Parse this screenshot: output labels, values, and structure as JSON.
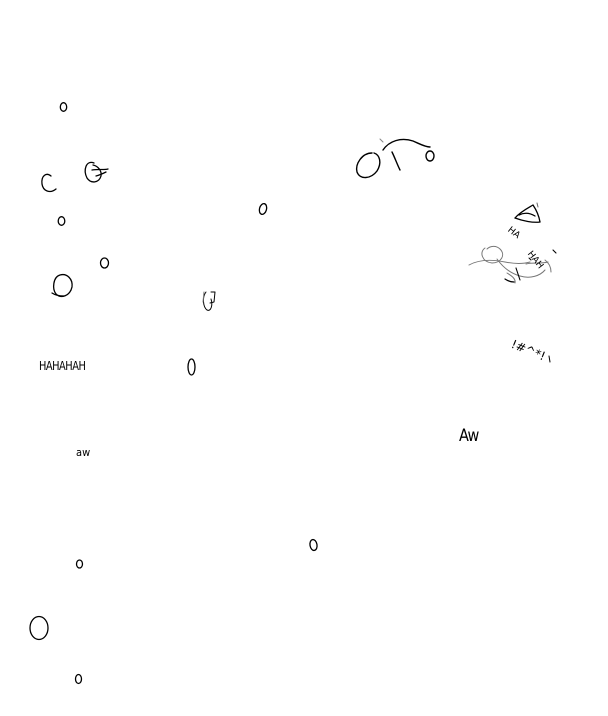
{
  "ink_color": "#000000",
  "faint_ink_color": "#555555",
  "background_color": "#ffffff",
  "texts": {
    "hahahah": "HAHAHAH",
    "ha_diagonal": "HA",
    "hah_diagonal": "HAH",
    "symbols": "!#^*!",
    "small_scribble": "aw",
    "big_scribble": "Aw"
  }
}
